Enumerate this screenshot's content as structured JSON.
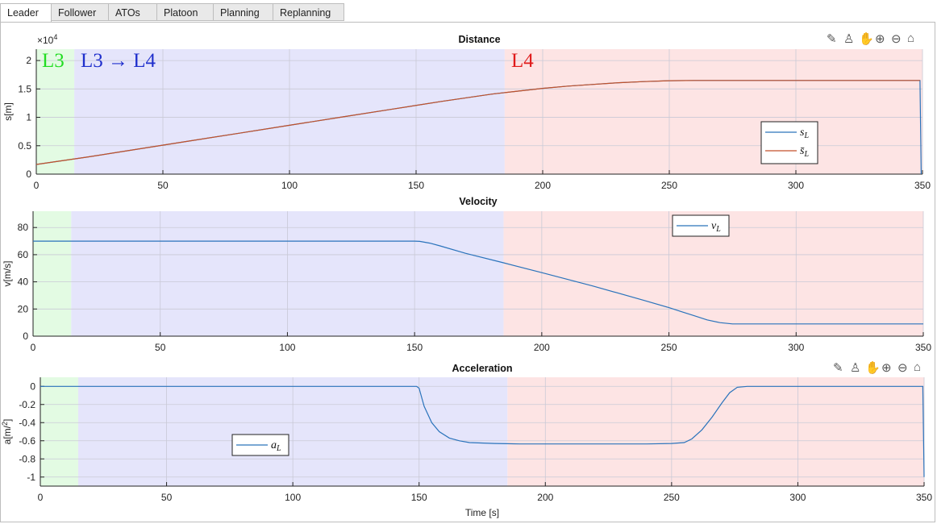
{
  "tabs": [
    {
      "label": "Leader",
      "active": true
    },
    {
      "label": "Follower",
      "active": false
    },
    {
      "label": "ATOs",
      "active": false
    },
    {
      "label": "Platoon",
      "active": false
    },
    {
      "label": "Planning",
      "active": false
    },
    {
      "label": "Replanning",
      "active": false
    }
  ],
  "toolbar_icons": [
    "edit-icon",
    "brush-icon",
    "pan-icon",
    "zoom-in-icon",
    "zoom-out-icon",
    "home-icon"
  ],
  "colors": {
    "l3_band": "#e3fbe3",
    "l34_band": "#e5e5fb",
    "l4_band": "#fde4e4",
    "blue_line": "#2a73bb",
    "orange_line": "#c3522a",
    "l3_text": "#22dd22",
    "l34_text": "#1f2fcc",
    "l4_text": "#e01a1a"
  },
  "phase_labels": {
    "l3": "L3",
    "l34": "L3 → L4",
    "l4": "L4"
  },
  "chart_data": [
    {
      "type": "line",
      "title": "Distance",
      "xlabel": "",
      "ylabel": "s[m]",
      "exponent_label": "×10",
      "exponent": "4",
      "xlim": [
        0,
        350
      ],
      "ylim": [
        0,
        2.2
      ],
      "xticks": [
        0,
        50,
        100,
        150,
        200,
        250,
        300,
        350
      ],
      "yticks": [
        0,
        0.5,
        1,
        1.5,
        2
      ],
      "ytick_labels": [
        "0",
        "0.5",
        "1",
        "1.5",
        "2"
      ],
      "bands": [
        [
          0,
          15
        ],
        [
          15,
          185
        ],
        [
          185,
          350
        ]
      ],
      "legend_position": "lower-right",
      "series": [
        {
          "name": "s",
          "sub": "L",
          "x": [
            0,
            20,
            40,
            60,
            80,
            100,
            120,
            140,
            160,
            180,
            190,
            200,
            210,
            220,
            230,
            240,
            250,
            260,
            270,
            280,
            300,
            320,
            340,
            349,
            349.5
          ],
          "values": [
            0.17,
            0.3,
            0.44,
            0.58,
            0.72,
            0.86,
            1.0,
            1.14,
            1.28,
            1.41,
            1.46,
            1.51,
            1.55,
            1.58,
            1.61,
            1.63,
            1.645,
            1.65,
            1.65,
            1.65,
            1.65,
            1.65,
            1.65,
            1.65,
            0.0
          ]
        },
        {
          "name": "s̄",
          "sub": "L",
          "x": [
            0,
            20,
            40,
            60,
            80,
            100,
            120,
            140,
            160,
            180,
            190,
            200,
            210,
            220,
            230,
            240,
            250,
            260,
            270,
            280,
            300,
            320,
            340,
            349
          ],
          "values": [
            0.17,
            0.3,
            0.44,
            0.58,
            0.72,
            0.86,
            1.0,
            1.14,
            1.28,
            1.41,
            1.46,
            1.51,
            1.55,
            1.58,
            1.61,
            1.63,
            1.645,
            1.65,
            1.65,
            1.65,
            1.65,
            1.65,
            1.65,
            1.65
          ]
        }
      ]
    },
    {
      "type": "line",
      "title": "Velocity",
      "xlabel": "",
      "ylabel": "v[m/s]",
      "xlim": [
        0,
        350
      ],
      "ylim": [
        0,
        92
      ],
      "xticks": [
        0,
        50,
        100,
        150,
        200,
        250,
        300,
        350
      ],
      "yticks": [
        0,
        20,
        40,
        60,
        80
      ],
      "ytick_labels": [
        "0",
        "20",
        "40",
        "60",
        "80"
      ],
      "bands": [
        [
          0,
          15
        ],
        [
          15,
          185
        ],
        [
          185,
          350
        ]
      ],
      "legend_position": "top-center-right",
      "series": [
        {
          "name": "v",
          "sub": "L",
          "x": [
            0,
            50,
            100,
            150,
            152,
            156,
            160,
            170,
            185,
            200,
            220,
            240,
            250,
            255,
            260,
            265,
            270,
            275,
            280,
            300,
            320,
            340,
            350
          ],
          "values": [
            70,
            70,
            70,
            70,
            69.8,
            68.5,
            66.5,
            61,
            54,
            46.8,
            37,
            26.5,
            21,
            18,
            15,
            12,
            10,
            9,
            9,
            9,
            9,
            9,
            9
          ]
        }
      ]
    },
    {
      "type": "line",
      "title": "Acceleration",
      "xlabel": "Time [s]",
      "ylabel": "a[m/s²]",
      "xlim": [
        0,
        350
      ],
      "ylim": [
        -1.1,
        0.1
      ],
      "xticks": [
        0,
        50,
        100,
        150,
        200,
        250,
        300,
        350
      ],
      "yticks": [
        0,
        -0.2,
        -0.4,
        -0.6,
        -0.8,
        -1
      ],
      "ytick_labels": [
        "0",
        "-0.2",
        "-0.4",
        "-0.6",
        "-0.8",
        "-1"
      ],
      "bands": [
        [
          0,
          15
        ],
        [
          15,
          185
        ],
        [
          185,
          350
        ]
      ],
      "legend_position": "lower-left",
      "series": [
        {
          "name": "a",
          "sub": "L",
          "x": [
            0,
            50,
            100,
            149,
            150,
            152,
            155,
            158,
            162,
            166,
            170,
            180,
            190,
            200,
            210,
            220,
            230,
            240,
            250,
            255,
            258,
            262,
            266,
            270,
            273,
            276,
            280,
            300,
            320,
            340,
            349.5,
            350
          ],
          "values": [
            0,
            0,
            0,
            0,
            -0.02,
            -0.22,
            -0.4,
            -0.5,
            -0.57,
            -0.6,
            -0.62,
            -0.63,
            -0.635,
            -0.635,
            -0.635,
            -0.635,
            -0.635,
            -0.635,
            -0.63,
            -0.62,
            -0.58,
            -0.48,
            -0.34,
            -0.18,
            -0.07,
            -0.01,
            0,
            0,
            0,
            0,
            0,
            -1.0
          ]
        }
      ]
    }
  ]
}
